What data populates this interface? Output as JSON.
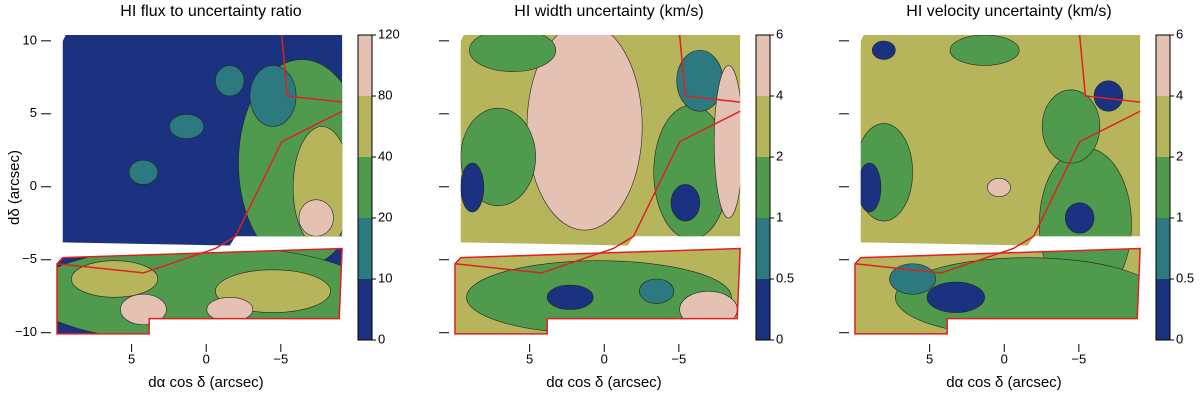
{
  "chart_data": [
    {
      "type": "contour",
      "title": "HI flux to uncertainty ratio",
      "xlabel": "dα cos δ (arcsec)",
      "ylabel": "dδ (arcsec)",
      "xlim": [
        10,
        -9.3
      ],
      "ylim": [
        -10.5,
        10.4
      ],
      "xticks": [
        5,
        0,
        {
          "value": -5,
          "label": "−5"
        }
      ],
      "yticks": [
        {
          "value": -10,
          "label": "−10"
        },
        {
          "value": -5,
          "label": "−5"
        },
        0,
        5,
        10
      ],
      "levels": [
        0,
        10,
        20,
        40,
        80,
        120
      ],
      "colors": [
        "#1b3280",
        "#2c7a80",
        "#4f9a4c",
        "#b6b55c",
        "#e4c1b3"
      ]
    },
    {
      "type": "contour",
      "title": "HI width uncertainty (km/s)",
      "xlabel": "dα cos δ (arcsec)",
      "xlim": [
        10,
        -9.3
      ],
      "ylim": [
        -10.5,
        10.4
      ],
      "xticks": [
        5,
        0,
        {
          "value": -5,
          "label": "−5"
        }
      ],
      "yticks": [
        -10,
        -5,
        0,
        5,
        10
      ],
      "levels": [
        0,
        0.5,
        1,
        2,
        4,
        6
      ],
      "colors": [
        "#1b3280",
        "#2c7a80",
        "#4f9a4c",
        "#b6b55c",
        "#e4c1b3"
      ]
    },
    {
      "type": "contour",
      "title": "HI velocity uncertainty (km/s)",
      "xlabel": "dα cos δ (arcsec)",
      "xlim": [
        10,
        -9.3
      ],
      "ylim": [
        -10.5,
        10.4
      ],
      "xticks": [
        5,
        0,
        {
          "value": -5,
          "label": "−5"
        }
      ],
      "yticks": [
        -10,
        -5,
        0,
        5,
        10
      ],
      "levels": [
        0,
        0.5,
        1,
        2,
        4,
        6
      ],
      "colors": [
        "#1b3280",
        "#2c7a80",
        "#4f9a4c",
        "#b6b55c",
        "#e4c1b3"
      ]
    }
  ]
}
